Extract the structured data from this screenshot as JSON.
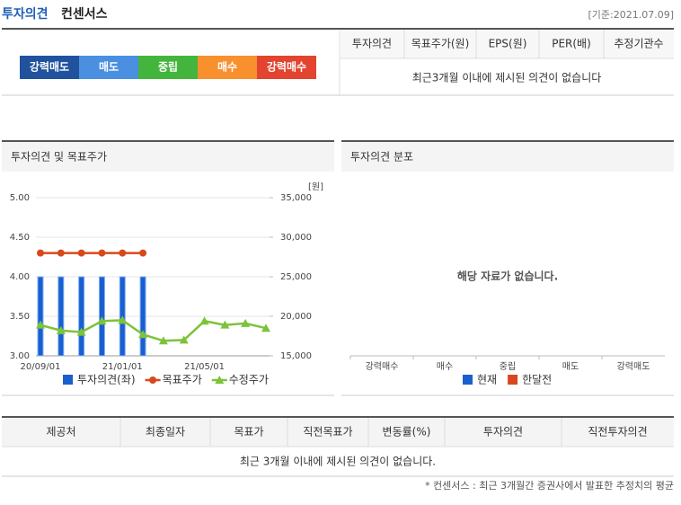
{
  "header": {
    "title": "투자의견",
    "subtitle": "컨센서스",
    "date": "[기준:2021.07.09]"
  },
  "opinion_scale": [
    {
      "label": "강력매도",
      "color": "#20529e"
    },
    {
      "label": "매도",
      "color": "#4a8fe0"
    },
    {
      "label": "중립",
      "color": "#44b53c"
    },
    {
      "label": "매수",
      "color": "#f7902d"
    },
    {
      "label": "강력매수",
      "color": "#e2442f"
    }
  ],
  "consensus_table": {
    "columns": [
      "투자의견",
      "목표주가(원)",
      "EPS(원)",
      "PER(배)",
      "추정기관수"
    ],
    "message": "최근3개월 이내에 제시된 의견이 없습니다"
  },
  "chart_data": [
    {
      "type": "combo",
      "title": "투자의견 및 목표주가",
      "y2_unit": "[원]",
      "categories": [
        "20/09/01",
        null,
        null,
        null,
        "21/01/01",
        null,
        null,
        null,
        "21/05/01",
        null,
        null,
        null
      ],
      "series": [
        {
          "name": "투자의견(좌)",
          "type": "bar",
          "color": "#1a5fd0",
          "values": [
            4,
            4,
            4,
            4,
            4,
            4,
            null,
            null,
            null,
            null,
            null,
            null
          ]
        },
        {
          "name": "목표주가",
          "type": "line",
          "marker": "circle",
          "axis": "y2",
          "color": "#d9481c",
          "values": [
            28000,
            28000,
            28000,
            28000,
            28000,
            28000,
            null,
            null,
            null,
            null,
            null,
            null
          ]
        },
        {
          "name": "수정주가",
          "type": "line",
          "marker": "triangle",
          "axis": "y2",
          "color": "#7cc33a",
          "values": [
            18900,
            18200,
            18000,
            19400,
            19500,
            17700,
            16900,
            17000,
            19400,
            18900,
            19100,
            18500
          ]
        }
      ],
      "ylim": [
        3,
        5
      ],
      "yticks": [
        {
          "value": 3,
          "label": "3.00"
        },
        {
          "value": 3.5,
          "label": "3.50"
        },
        {
          "value": 4,
          "label": "4.00"
        },
        {
          "value": 4.5,
          "label": "4.50"
        },
        {
          "value": 5,
          "label": "5.00"
        }
      ],
      "y2lim": [
        15000,
        35000
      ],
      "y2ticks": [
        {
          "value": 15000,
          "label": "15,000"
        },
        {
          "value": 20000,
          "label": "20,000"
        },
        {
          "value": 25000,
          "label": "25,000"
        },
        {
          "value": 30000,
          "label": "30,000"
        },
        {
          "value": 35000,
          "label": "35,000"
        }
      ],
      "grid": true
    },
    {
      "type": "bar",
      "title": "투자의견 분포",
      "message": "해당 자료가 없습니다.",
      "categories": [
        "강력매수",
        "매수",
        "중립",
        "매도",
        "강력매도"
      ],
      "series": [
        {
          "name": "현재",
          "color": "#1a5fd0",
          "values": [
            null,
            null,
            null,
            null,
            null
          ]
        },
        {
          "name": "한달전",
          "color": "#d9481c",
          "values": [
            null,
            null,
            null,
            null,
            null
          ]
        }
      ]
    }
  ],
  "report_table": {
    "columns": [
      "제공처",
      "최종일자",
      "목표가",
      "직전목표가",
      "변동률(%)",
      "투자의견",
      "직전투자의견"
    ],
    "message": "최근 3개월 이내에 제시된 의견이 없습니다."
  },
  "footnote": "* 컨센서스 : 최근 3개월간 증권사에서 발표한 추정치의 평균"
}
